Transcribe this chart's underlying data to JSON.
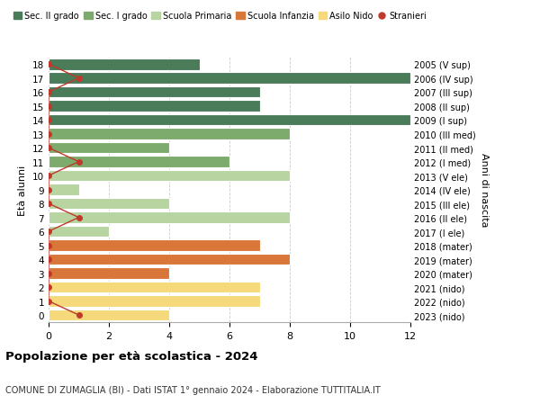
{
  "ages": [
    18,
    17,
    16,
    15,
    14,
    13,
    12,
    11,
    10,
    9,
    8,
    7,
    6,
    5,
    4,
    3,
    2,
    1,
    0
  ],
  "right_labels": [
    "2005 (V sup)",
    "2006 (IV sup)",
    "2007 (III sup)",
    "2008 (II sup)",
    "2009 (I sup)",
    "2010 (III med)",
    "2011 (II med)",
    "2012 (I med)",
    "2013 (V ele)",
    "2014 (IV ele)",
    "2015 (III ele)",
    "2016 (II ele)",
    "2017 (I ele)",
    "2018 (mater)",
    "2019 (mater)",
    "2020 (mater)",
    "2021 (nido)",
    "2022 (nido)",
    "2023 (nido)"
  ],
  "bar_values": [
    5,
    12,
    7,
    7,
    12,
    8,
    4,
    6,
    8,
    1,
    4,
    8,
    2,
    7,
    8,
    4,
    7,
    7,
    4
  ],
  "stranieri_values": [
    0,
    1,
    0,
    0,
    0,
    0,
    0,
    1,
    0,
    0,
    0,
    1,
    0,
    0,
    0,
    0,
    0,
    0,
    1
  ],
  "bar_colors": [
    "#4a7c59",
    "#4a7c59",
    "#4a7c59",
    "#4a7c59",
    "#4a7c59",
    "#7dab6e",
    "#7dab6e",
    "#7dab6e",
    "#b8d4a0",
    "#b8d4a0",
    "#b8d4a0",
    "#b8d4a0",
    "#b8d4a0",
    "#d9763a",
    "#d9763a",
    "#d9763a",
    "#f5d97a",
    "#f5d97a",
    "#f5d97a"
  ],
  "stranieri_color": "#c0392b",
  "stranieri_line_color": "#c0392b",
  "title": "Popolazione per età scolastica - 2024",
  "subtitle": "COMUNE DI ZUMAGLIA (BI) - Dati ISTAT 1° gennaio 2024 - Elaborazione TUTTITALIA.IT",
  "ylabel": "Età alunni",
  "right_ylabel": "Anni di nascita",
  "xlim": [
    0,
    12
  ],
  "xticks": [
    0,
    2,
    4,
    6,
    8,
    10,
    12
  ],
  "legend_entries": [
    {
      "label": "Sec. II grado",
      "color": "#4a7c59"
    },
    {
      "label": "Sec. I grado",
      "color": "#7dab6e"
    },
    {
      "label": "Scuola Primaria",
      "color": "#b8d4a0"
    },
    {
      "label": "Scuola Infanzia",
      "color": "#d9763a"
    },
    {
      "label": "Asilo Nido",
      "color": "#f5d97a"
    },
    {
      "label": "Stranieri",
      "color": "#c0392b"
    }
  ],
  "background_color": "#ffffff",
  "grid_color": "#cccccc",
  "bar_height": 0.82
}
